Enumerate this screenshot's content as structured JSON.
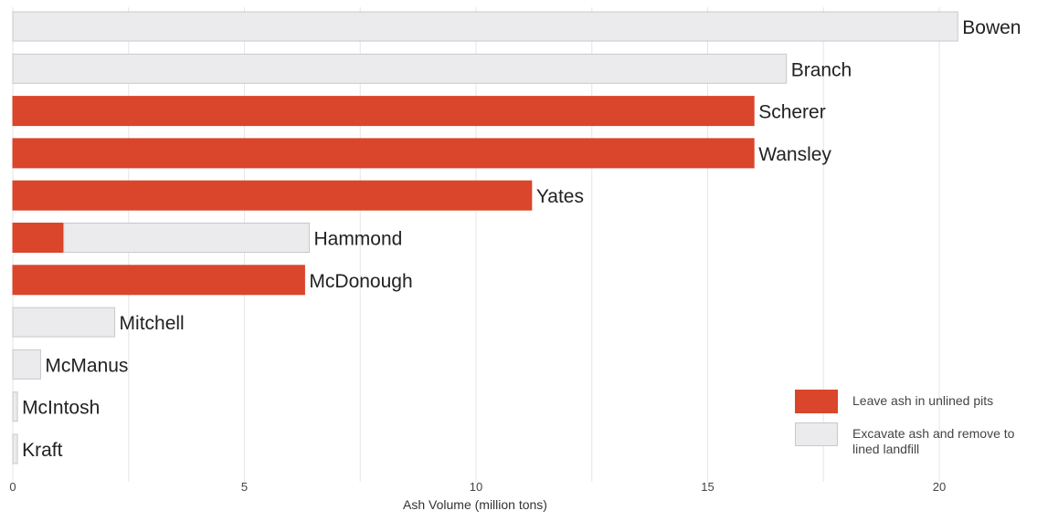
{
  "chart_data": {
    "type": "bar",
    "orientation": "horizontal",
    "stacked": true,
    "categories": [
      "Bowen",
      "Branch",
      "Scherer",
      "Wansley",
      "Yates",
      "Hammond",
      "McDonough",
      "Mitchell",
      "McManus",
      "McIntosh",
      "Kraft"
    ],
    "series": [
      {
        "name": "Leave ash in unlined pits",
        "color": "#d9462b",
        "values": [
          0,
          0,
          16.0,
          16.0,
          11.2,
          1.1,
          6.3,
          0,
          0,
          0,
          0
        ]
      },
      {
        "name": "Excavate ash and remove to lined landfill",
        "color": "#ebebed",
        "values": [
          20.4,
          16.7,
          0,
          0,
          0,
          5.3,
          0,
          2.2,
          0.6,
          0.1,
          0.1
        ]
      }
    ],
    "xlabel": "Ash Volume (million tons)",
    "ylabel": "",
    "xlim": [
      0,
      22.5
    ],
    "xticks": [
      0,
      5,
      10,
      15,
      20
    ],
    "tick_labels": [
      "0",
      "5",
      "10",
      "15",
      "20"
    ],
    "grid": true,
    "legend_position": "bottom-right"
  }
}
